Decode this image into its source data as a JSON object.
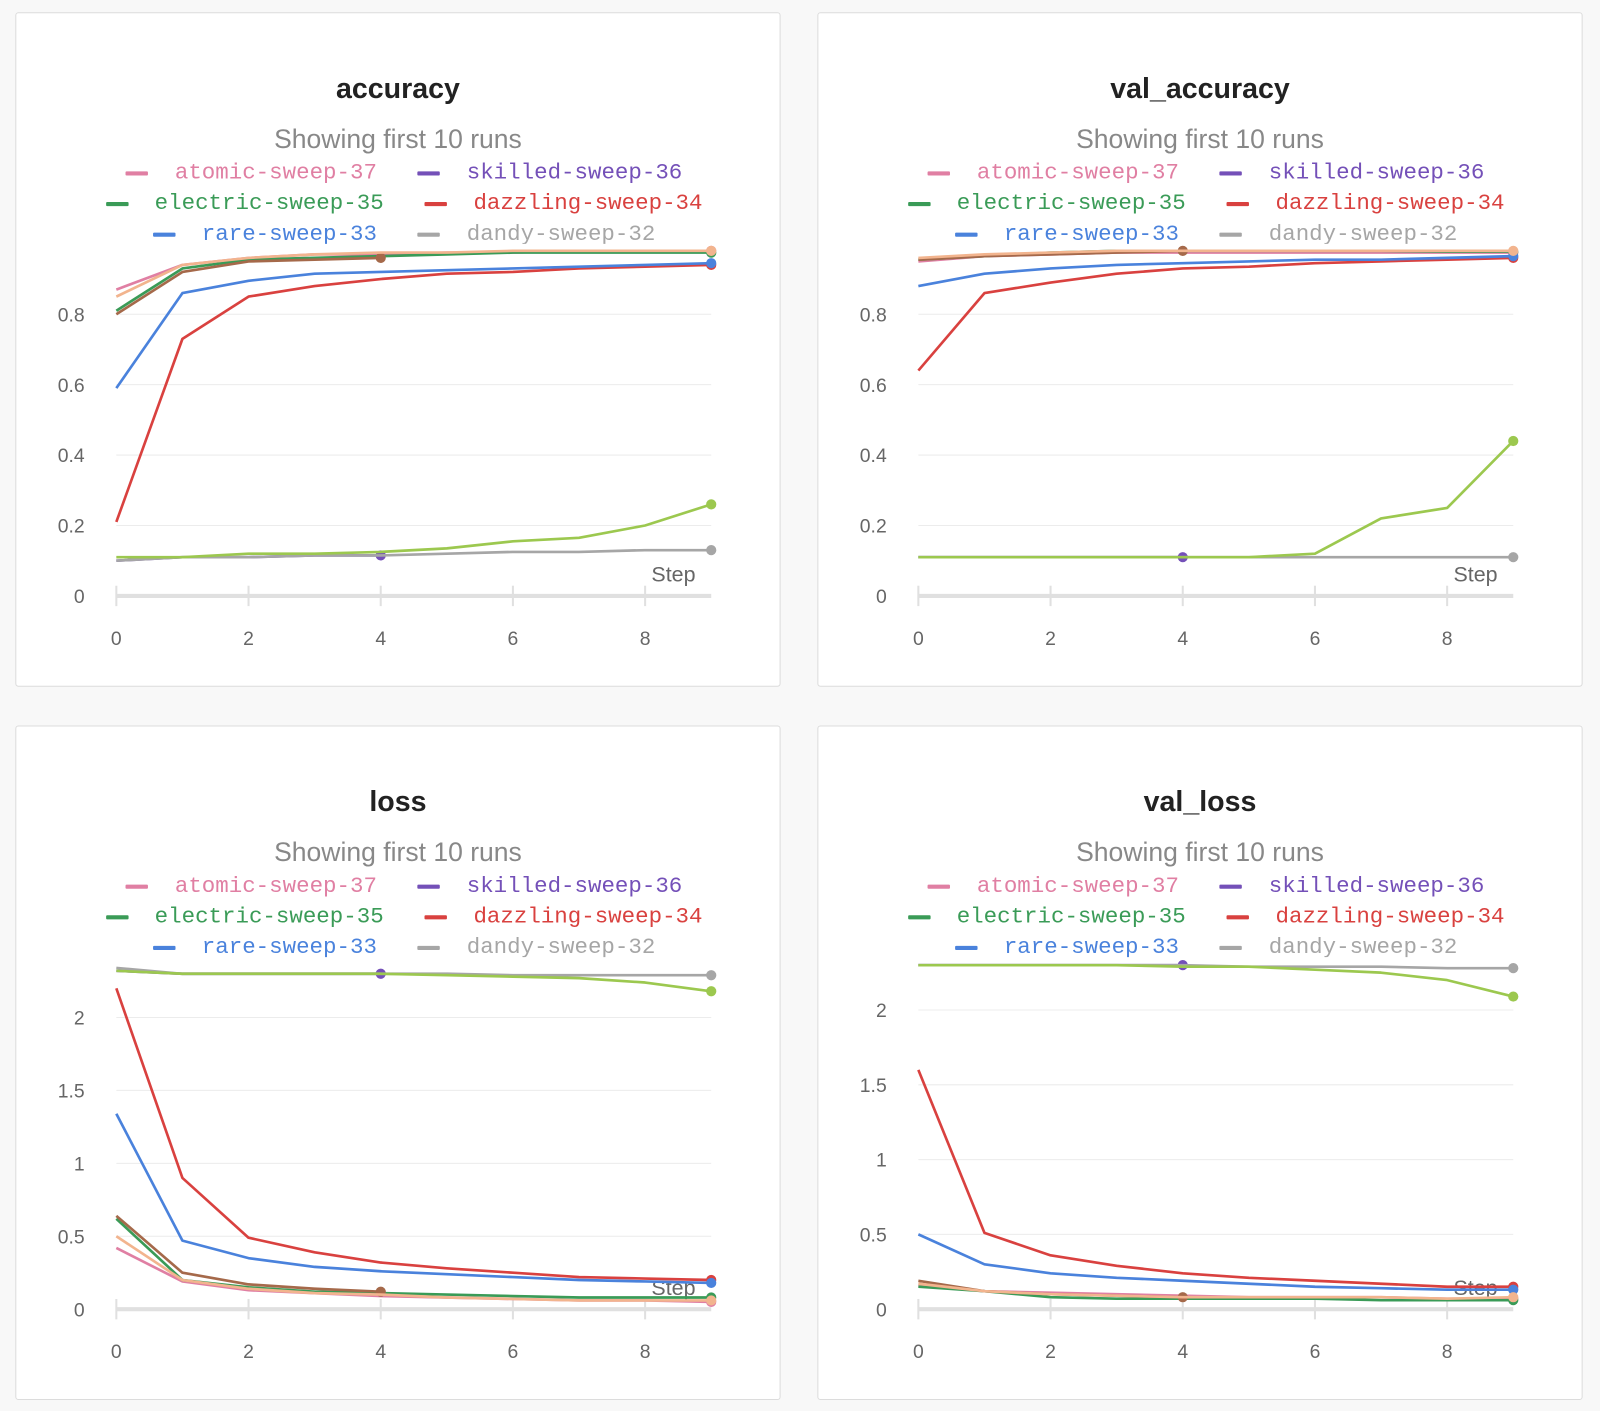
{
  "subtitle": "Showing first 10 runs",
  "x_axis_label": "Step",
  "legend": [
    {
      "name": "atomic-sweep-37",
      "color": "#e07fa3"
    },
    {
      "name": "skilled-sweep-36",
      "color": "#7450b8"
    },
    {
      "name": "electric-sweep-35",
      "color": "#3a9b57"
    },
    {
      "name": "dazzling-sweep-34",
      "color": "#d9413f"
    },
    {
      "name": "rare-sweep-33",
      "color": "#4a82dc"
    },
    {
      "name": "dandy-sweep-32",
      "color": "#a6a6a6"
    }
  ],
  "chart_data": [
    {
      "type": "line",
      "title": "accuracy",
      "xlabel": "Step",
      "xlim": [
        0,
        9
      ],
      "ylim": [
        0,
        0.994
      ],
      "xticks": [
        "0",
        "2",
        "4",
        "6",
        "8"
      ],
      "yticks": [
        "0",
        "0.2",
        "0.4",
        "0.6",
        "0.8"
      ],
      "grid": true,
      "series": [
        {
          "name": "atomic-sweep-37",
          "color": "#e07fa3",
          "values": [
            0.87,
            0.94,
            0.96,
            0.97,
            0.97,
            0.975,
            0.975,
            0.98,
            0.98,
            0.98
          ]
        },
        {
          "name": "skilled-sweep-36",
          "color": "#7450b8",
          "values": [
            0.1,
            0.11,
            0.11,
            0.115,
            0.115
          ]
        },
        {
          "name": "electric-sweep-35",
          "color": "#3a9b57",
          "values": [
            0.81,
            0.93,
            0.955,
            0.96,
            0.965,
            0.97,
            0.975,
            0.975,
            0.975,
            0.975
          ]
        },
        {
          "name": "dazzling-sweep-34",
          "color": "#d9413f",
          "values": [
            0.21,
            0.73,
            0.85,
            0.88,
            0.9,
            0.915,
            0.92,
            0.93,
            0.935,
            0.94
          ]
        },
        {
          "name": "rare-sweep-33",
          "color": "#4a82dc",
          "values": [
            0.59,
            0.86,
            0.895,
            0.915,
            0.92,
            0.925,
            0.93,
            0.935,
            0.94,
            0.945
          ]
        },
        {
          "name": "dandy-sweep-32",
          "color": "#a6a6a6",
          "values": [
            0.1,
            0.11,
            0.11,
            0.115,
            0.115,
            0.12,
            0.125,
            0.125,
            0.13,
            0.13
          ]
        },
        {
          "color": "#9cc84f",
          "values": [
            0.11,
            0.11,
            0.12,
            0.12,
            0.125,
            0.135,
            0.155,
            0.165,
            0.2,
            0.26
          ]
        },
        {
          "color": "#a5694a",
          "values": [
            0.8,
            0.92,
            0.95,
            0.955,
            0.96
          ]
        },
        {
          "color": "#f2b48e",
          "values": [
            0.85,
            0.94,
            0.96,
            0.97,
            0.975,
            0.975,
            0.98,
            0.98,
            0.98,
            0.98
          ]
        }
      ]
    },
    {
      "type": "line",
      "title": "val_accuracy",
      "xlabel": "Step",
      "xlim": [
        0,
        9
      ],
      "ylim": [
        0,
        0.994
      ],
      "xticks": [
        "0",
        "2",
        "4",
        "6",
        "8"
      ],
      "yticks": [
        "0",
        "0.2",
        "0.4",
        "0.6",
        "0.8"
      ],
      "grid": true,
      "series": [
        {
          "name": "atomic-sweep-37",
          "color": "#e07fa3",
          "values": [
            0.95,
            0.965,
            0.97,
            0.975,
            0.975,
            0.975,
            0.975,
            0.975,
            0.975,
            0.975
          ]
        },
        {
          "name": "skilled-sweep-36",
          "color": "#7450b8",
          "values": [
            0.11,
            0.11,
            0.11,
            0.11,
            0.11
          ]
        },
        {
          "name": "electric-sweep-35",
          "color": "#3a9b57",
          "values": [
            0.955,
            0.965,
            0.975,
            0.98,
            0.98,
            0.98,
            0.98,
            0.98,
            0.978,
            0.978
          ]
        },
        {
          "name": "dazzling-sweep-34",
          "color": "#d9413f",
          "values": [
            0.64,
            0.86,
            0.89,
            0.915,
            0.93,
            0.935,
            0.945,
            0.95,
            0.955,
            0.96
          ]
        },
        {
          "name": "rare-sweep-33",
          "color": "#4a82dc",
          "values": [
            0.88,
            0.915,
            0.93,
            0.94,
            0.945,
            0.95,
            0.955,
            0.955,
            0.96,
            0.965
          ]
        },
        {
          "name": "dandy-sweep-32",
          "color": "#a6a6a6",
          "values": [
            0.11,
            0.11,
            0.11,
            0.11,
            0.11,
            0.11,
            0.11,
            0.11,
            0.11,
            0.11
          ]
        },
        {
          "color": "#9cc84f",
          "values": [
            0.11,
            0.11,
            0.11,
            0.11,
            0.11,
            0.11,
            0.12,
            0.22,
            0.25,
            0.44
          ]
        },
        {
          "color": "#a5694a",
          "values": [
            0.955,
            0.965,
            0.97,
            0.975,
            0.98
          ]
        },
        {
          "color": "#f2b48e",
          "values": [
            0.96,
            0.97,
            0.975,
            0.98,
            0.98,
            0.98,
            0.98,
            0.98,
            0.98,
            0.98
          ]
        }
      ]
    },
    {
      "type": "line",
      "title": "loss",
      "xlabel": "Step",
      "xlim": [
        0,
        9
      ],
      "ylim": [
        0,
        2.4
      ],
      "xticks": [
        "0",
        "2",
        "4",
        "6",
        "8"
      ],
      "yticks": [
        "0",
        "0.5",
        "1",
        "1.5",
        "2"
      ],
      "grid": true,
      "series": [
        {
          "name": "atomic-sweep-37",
          "color": "#e07fa3",
          "values": [
            0.42,
            0.19,
            0.13,
            0.11,
            0.09,
            0.08,
            0.07,
            0.06,
            0.06,
            0.05
          ]
        },
        {
          "name": "skilled-sweep-36",
          "color": "#7450b8",
          "values": [
            2.32,
            2.3,
            2.3,
            2.3,
            2.3
          ]
        },
        {
          "name": "electric-sweep-35",
          "color": "#3a9b57",
          "values": [
            0.62,
            0.2,
            0.15,
            0.12,
            0.11,
            0.1,
            0.09,
            0.08,
            0.08,
            0.08
          ]
        },
        {
          "name": "dazzling-sweep-34",
          "color": "#d9413f",
          "values": [
            2.2,
            0.9,
            0.49,
            0.39,
            0.32,
            0.28,
            0.25,
            0.22,
            0.21,
            0.2
          ]
        },
        {
          "name": "rare-sweep-33",
          "color": "#4a82dc",
          "values": [
            1.34,
            0.47,
            0.35,
            0.29,
            0.26,
            0.24,
            0.22,
            0.2,
            0.19,
            0.18
          ]
        },
        {
          "name": "dandy-sweep-32",
          "color": "#a6a6a6",
          "values": [
            2.34,
            2.3,
            2.3,
            2.3,
            2.3,
            2.3,
            2.29,
            2.29,
            2.29,
            2.29
          ]
        },
        {
          "color": "#9cc84f",
          "values": [
            2.32,
            2.3,
            2.3,
            2.3,
            2.3,
            2.29,
            2.28,
            2.27,
            2.24,
            2.18
          ]
        },
        {
          "color": "#a5694a",
          "values": [
            0.64,
            0.25,
            0.17,
            0.14,
            0.12
          ]
        },
        {
          "color": "#f2b48e",
          "values": [
            0.5,
            0.2,
            0.14,
            0.11,
            0.1,
            0.08,
            0.07,
            0.06,
            0.06,
            0.06
          ]
        }
      ]
    },
    {
      "type": "line",
      "title": "val_loss",
      "xlabel": "Step",
      "xlim": [
        0,
        9
      ],
      "ylim": [
        0,
        2.34
      ],
      "xticks": [
        "0",
        "2",
        "4",
        "6",
        "8"
      ],
      "yticks": [
        "0",
        "0.5",
        "1",
        "1.5",
        "2"
      ],
      "grid": true,
      "series": [
        {
          "name": "atomic-sweep-37",
          "color": "#e07fa3",
          "values": [
            0.16,
            0.12,
            0.11,
            0.1,
            0.09,
            0.08,
            0.08,
            0.08,
            0.07,
            0.07
          ]
        },
        {
          "name": "skilled-sweep-36",
          "color": "#7450b8",
          "values": [
            2.3,
            2.3,
            2.3,
            2.3,
            2.3
          ]
        },
        {
          "name": "electric-sweep-35",
          "color": "#3a9b57",
          "values": [
            0.15,
            0.12,
            0.08,
            0.07,
            0.07,
            0.07,
            0.07,
            0.06,
            0.06,
            0.06
          ]
        },
        {
          "name": "dazzling-sweep-34",
          "color": "#d9413f",
          "values": [
            1.6,
            0.51,
            0.36,
            0.29,
            0.24,
            0.21,
            0.19,
            0.17,
            0.15,
            0.15
          ]
        },
        {
          "name": "rare-sweep-33",
          "color": "#4a82dc",
          "values": [
            0.5,
            0.3,
            0.24,
            0.21,
            0.19,
            0.17,
            0.15,
            0.14,
            0.13,
            0.13
          ]
        },
        {
          "name": "dandy-sweep-32",
          "color": "#a6a6a6",
          "values": [
            2.3,
            2.3,
            2.3,
            2.3,
            2.3,
            2.29,
            2.29,
            2.29,
            2.28,
            2.28
          ]
        },
        {
          "color": "#9cc84f",
          "values": [
            2.3,
            2.3,
            2.3,
            2.3,
            2.29,
            2.29,
            2.27,
            2.25,
            2.2,
            2.09
          ]
        },
        {
          "color": "#a5694a",
          "values": [
            0.19,
            0.12,
            0.1,
            0.09,
            0.08
          ]
        },
        {
          "color": "#f2b48e",
          "values": [
            0.17,
            0.12,
            0.1,
            0.09,
            0.08,
            0.08,
            0.08,
            0.08,
            0.07,
            0.08
          ]
        }
      ]
    }
  ]
}
